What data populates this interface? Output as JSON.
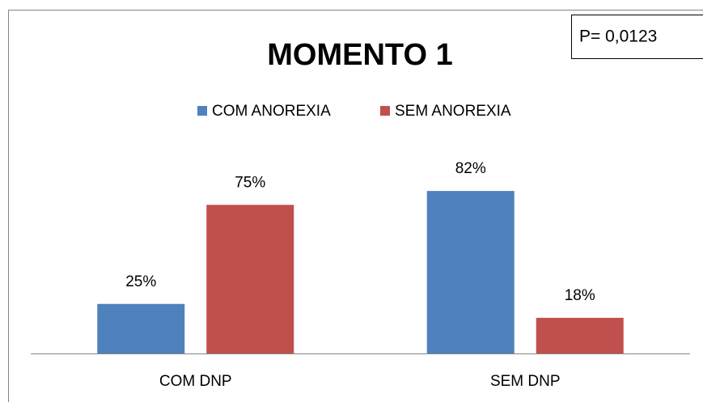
{
  "chart_data": {
    "type": "bar",
    "title": "MOMENTO 1",
    "annotation": "P= 0,0123",
    "categories": [
      "COM DNP",
      "SEM DNP"
    ],
    "series": [
      {
        "name": "COM ANOREXIA",
        "color": "#4f81bd",
        "values": [
          25,
          82
        ],
        "value_labels": [
          "25%",
          "82%"
        ]
      },
      {
        "name": "SEM ANOREXIA",
        "color": "#c0504d",
        "values": [
          75,
          18
        ],
        "value_labels": [
          "75%",
          "18%"
        ]
      }
    ]
  }
}
